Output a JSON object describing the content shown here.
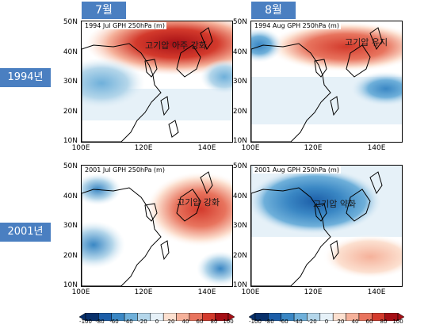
{
  "months": [
    "7월",
    "8월"
  ],
  "years": [
    "1994년",
    "2001년"
  ],
  "panels": [
    {
      "title": "1994 Jul GPH 250hPa (m)",
      "annotation": "고기압 아주 강화"
    },
    {
      "title": "1994 Aug GPH 250hPa (m)",
      "annotation": "고기압 유지"
    },
    {
      "title": "2001 Jul GPH 250hPa (m)",
      "annotation": "고기압 강화"
    },
    {
      "title": "2001 Aug GPH 250hPa (m)",
      "annotation": "고기압 약화"
    }
  ],
  "axes": {
    "lat_ticks": [
      "50N",
      "40N",
      "30N",
      "20N",
      "10N"
    ],
    "lon_ticks": [
      "100E",
      "120E",
      "140E"
    ]
  },
  "colorbar": {
    "labels": [
      "-100",
      "-80",
      "-60",
      "-40",
      "-20",
      "0",
      "20",
      "40",
      "60",
      "80",
      "100"
    ],
    "colors": [
      "#08306b",
      "#1c5ea8",
      "#3a87c4",
      "#6fb0da",
      "#b4d6ea",
      "#e6f1f8",
      "#fce0d0",
      "#f5b19a",
      "#e8745e",
      "#d33a2c",
      "#a50f15"
    ]
  }
}
